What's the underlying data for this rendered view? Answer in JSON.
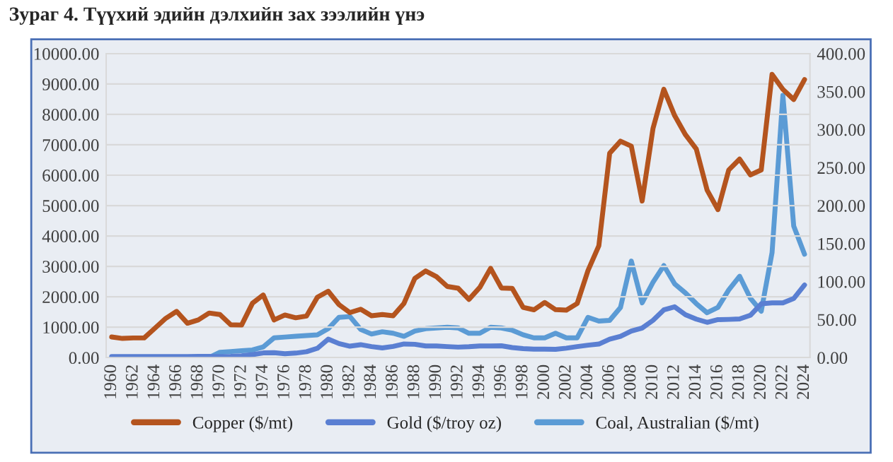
{
  "chart_data": {
    "type": "line",
    "title": "Зураг 4. Түүхий эдийн дэлхийн зах зээлийн үнэ",
    "categories": [
      "1960",
      null,
      "1962",
      null,
      "1964",
      null,
      "1966",
      null,
      "1968",
      null,
      "1970",
      null,
      "1972",
      null,
      "1974",
      null,
      "1976",
      null,
      "1978",
      null,
      "1980",
      null,
      "1982",
      null,
      "1984",
      null,
      "1986",
      null,
      "1988",
      null,
      "1990",
      null,
      "1992",
      null,
      "1994",
      null,
      "1996",
      null,
      "1998",
      null,
      "2000",
      null,
      "2002",
      null,
      "2004",
      null,
      "2006",
      null,
      "2008",
      null,
      "2010",
      null,
      "2012",
      null,
      "2014",
      null,
      "2016",
      null,
      "2018",
      null,
      "2020",
      null,
      "2022",
      null,
      "2024"
    ],
    "series": [
      {
        "name": "Copper ($/mt)",
        "color": "#b4541e",
        "values": [
          679,
          630,
          646,
          646,
          968,
          1293,
          1521,
          1130,
          1240,
          1466,
          1416,
          1081,
          1071,
          1786,
          2059,
          1237,
          1401,
          1310,
          1367,
          1985,
          2182,
          1742,
          1480,
          1592,
          1377,
          1417,
          1374,
          1783,
          2602,
          2848,
          2662,
          2339,
          2281,
          1913,
          2307,
          2936,
          2289,
          2277,
          1654,
          1573,
          1813,
          1578,
          1560,
          1779,
          2866,
          3679,
          6722,
          7118,
          6956,
          5150,
          7535,
          8828,
          7962,
          7332,
          6863,
          5510,
          4868,
          6170,
          6530,
          6010,
          6174,
          9317,
          8822,
          8490,
          9147
        ]
      },
      {
        "name": "Gold ($/troy oz)",
        "color": "#5a7fd2",
        "values": [
          35,
          35,
          35,
          35,
          35,
          35,
          35,
          35,
          39,
          41,
          36,
          41,
          58,
          97,
          154,
          161,
          125,
          148,
          193,
          306,
          608,
          460,
          376,
          424,
          361,
          317,
          368,
          447,
          437,
          381,
          383,
          362,
          344,
          360,
          384,
          384,
          388,
          331,
          294,
          279,
          279,
          271,
          310,
          363,
          409,
          445,
          604,
          697,
          872,
          973,
          1225,
          1569,
          1670,
          1411,
          1266,
          1160,
          1249,
          1257,
          1269,
          1392,
          1770,
          1799,
          1801,
          1943,
          2388
        ]
      },
      {
        "name": "Coal, Australian ($/mt)",
        "color": "#5b9bd5",
        "axis": "y2",
        "values": [
          0,
          0,
          0,
          0,
          0,
          0,
          0,
          0,
          0,
          0,
          7,
          8,
          9,
          10,
          14,
          26,
          27,
          28,
          29,
          30,
          38,
          53,
          54,
          37,
          31,
          34,
          32,
          28,
          35,
          38,
          39,
          40,
          39,
          32,
          32,
          40,
          39,
          36,
          30,
          26,
          26,
          32,
          26,
          26,
          53,
          48,
          49,
          66,
          127,
          72,
          99,
          121,
          97,
          85,
          71,
          59,
          66,
          89,
          107,
          78,
          61,
          138,
          345,
          173,
          136
        ]
      }
    ],
    "ylim": [
      0,
      10000
    ],
    "yticks": [
      {
        "value": 0,
        "label": "0.00"
      },
      {
        "value": 1000,
        "label": "1000.00"
      },
      {
        "value": 2000,
        "label": "2000.00"
      },
      {
        "value": 3000,
        "label": "3000.00"
      },
      {
        "value": 4000,
        "label": "4000.00"
      },
      {
        "value": 5000,
        "label": "5000.00"
      },
      {
        "value": 6000,
        "label": "6000.00"
      },
      {
        "value": 7000,
        "label": "7000.00"
      },
      {
        "value": 8000,
        "label": "8000.00"
      },
      {
        "value": 9000,
        "label": "9000.00"
      },
      {
        "value": 10000,
        "label": "10000.00"
      }
    ],
    "y2lim": [
      0,
      400
    ],
    "y2ticks": [
      {
        "value": 0,
        "label": "0.00"
      },
      {
        "value": 50,
        "label": "50.00"
      },
      {
        "value": 100,
        "label": "100.00"
      },
      {
        "value": 150,
        "label": "150.00"
      },
      {
        "value": 200,
        "label": "200.00"
      },
      {
        "value": 250,
        "label": "250.00"
      },
      {
        "value": 300,
        "label": "300.00"
      },
      {
        "value": 350,
        "label": "350.00"
      },
      {
        "value": 400,
        "label": "400.00"
      }
    ],
    "grid": "y",
    "legend": "bottom",
    "marker": "none",
    "line_style": "solid"
  }
}
